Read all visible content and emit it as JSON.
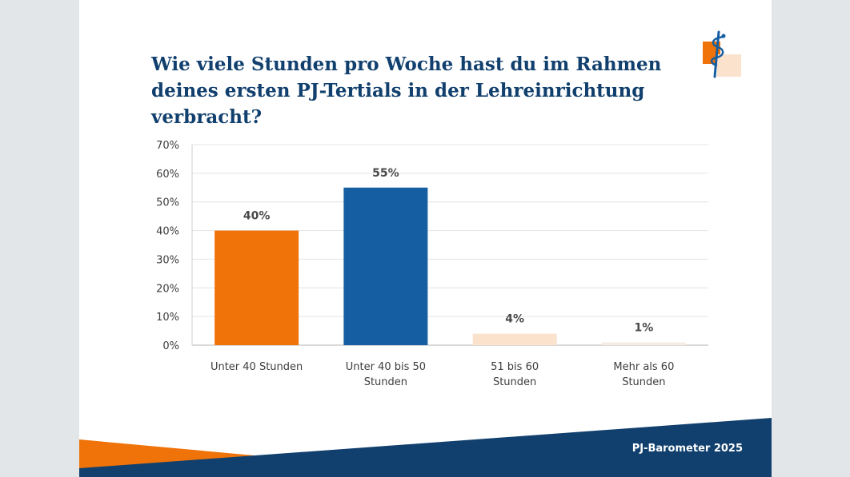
{
  "title": "Wie viele Stunden pro Woche hast du im Rahmen deines ersten PJ-Tertials in der Lehreinrichtung verbracht?",
  "footer": "PJ-Barometer 2025",
  "chart_data": {
    "type": "bar",
    "title": "Wie viele Stunden pro Woche hast du im Rahmen deines ersten PJ-Tertials in der Lehreinrichtung verbracht?",
    "categories": [
      [
        "Unter 40 Stunden"
      ],
      [
        "Unter 40 bis 50",
        "Stunden"
      ],
      [
        "51 bis 60",
        "Stunden"
      ],
      [
        "Mehr als 60",
        "Stunden"
      ]
    ],
    "values": [
      40,
      55,
      4,
      1
    ],
    "value_labels": [
      "40%",
      "55%",
      "4%",
      "1%"
    ],
    "bar_colors": [
      "#ef7309",
      "#155ea1",
      "#fbe2cc",
      "#f6ece4"
    ],
    "ylim": [
      0,
      70
    ],
    "yticks": [
      0,
      10,
      20,
      30,
      40,
      50,
      60,
      70
    ],
    "ytick_labels": [
      "0%",
      "10%",
      "20%",
      "30%",
      "40%",
      "50%",
      "60%",
      "70%"
    ],
    "grid": true,
    "legend": "none"
  },
  "colors": {
    "title": "#12406e",
    "navy": "#12406e",
    "orange": "#ef7309",
    "peach": "#fbe2cc"
  }
}
